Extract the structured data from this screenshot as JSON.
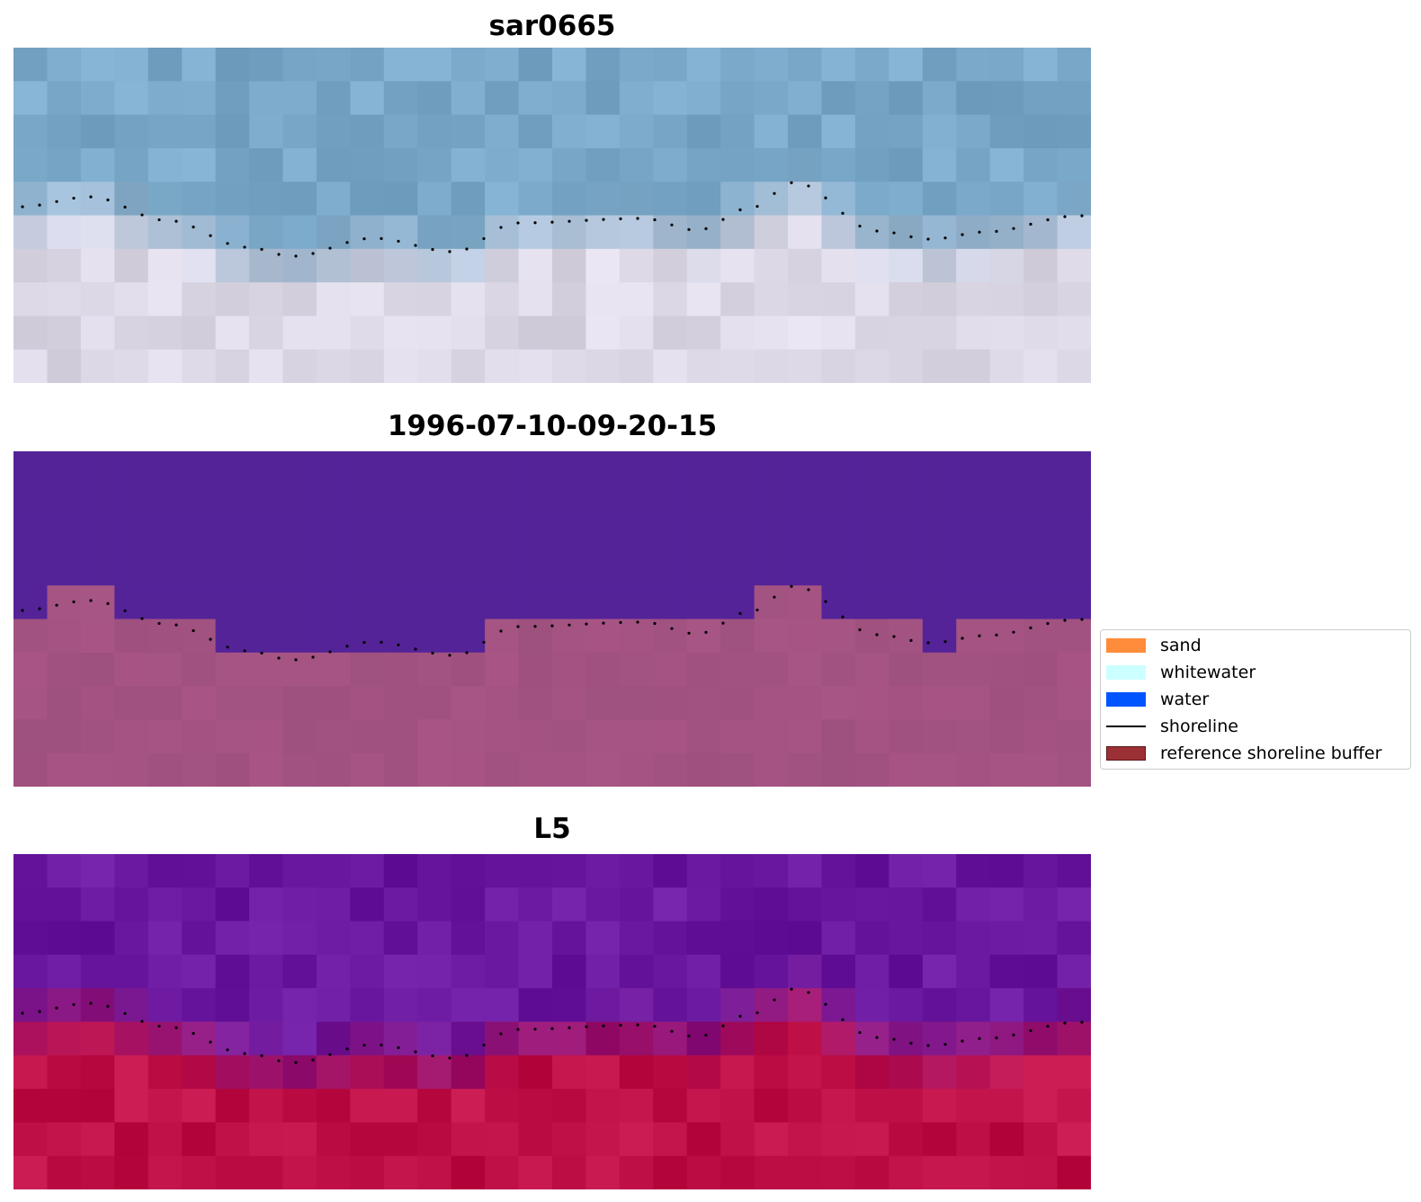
{
  "panels": [
    {
      "title": "sar0665"
    },
    {
      "title": "1996-07-10-09-20-15"
    },
    {
      "title": "L5"
    }
  ],
  "legend": {
    "items": [
      {
        "label": "sand",
        "color": "#ff8c3a",
        "kind": "patch"
      },
      {
        "label": "whitewater",
        "color": "#ccffff",
        "kind": "patch"
      },
      {
        "label": "water",
        "color": "#0055ff",
        "kind": "patch"
      },
      {
        "label": "shoreline",
        "color": "#000000",
        "kind": "line"
      },
      {
        "label": "reference shoreline buffer",
        "color": "#9b3035",
        "kind": "patch"
      }
    ]
  },
  "colors": {
    "rgb_water": "#79a8c8",
    "rgb_land": "#dcd8e6",
    "class_water": "#542398",
    "class_land": "#a85585",
    "mndwi_water": "#6a18a0",
    "mndwi_land": "#c01048",
    "shoreline_dots": "#000000"
  }
}
